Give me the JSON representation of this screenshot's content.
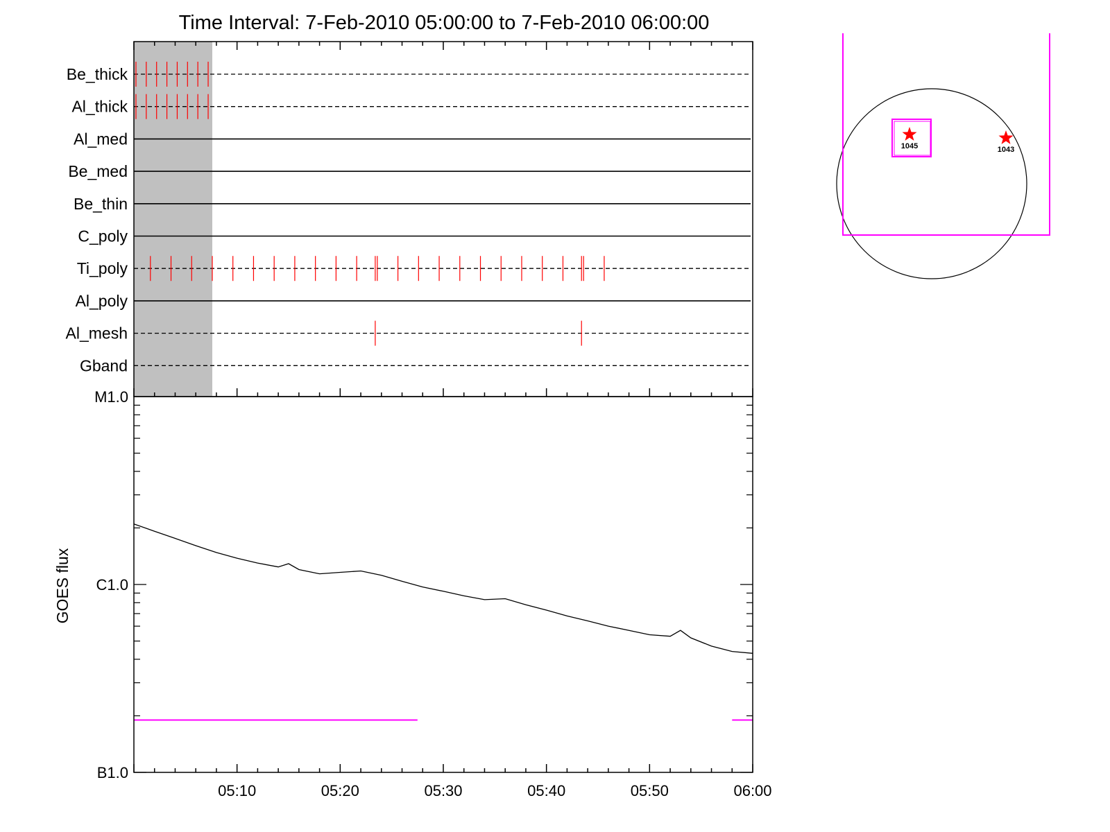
{
  "chart_data": [
    {
      "type": "timeline",
      "title": "Time Interval:  7-Feb-2010 05:00:00 to  7-Feb-2010 06:00:00",
      "x_range": [
        "05:00",
        "06:00"
      ],
      "shaded_interval": [
        "05:00",
        "05:07.6"
      ],
      "rows": [
        {
          "name": "Be_thick",
          "line": "dashed",
          "events": [
            "05:00.2",
            "05:01.2",
            "05:02.2",
            "05:03.2",
            "05:04.2",
            "05:05.2",
            "05:06.2",
            "05:07.2"
          ]
        },
        {
          "name": "Al_thick",
          "line": "dashed",
          "events": [
            "05:00.2",
            "05:01.2",
            "05:02.2",
            "05:03.2",
            "05:04.2",
            "05:05.2",
            "05:06.2",
            "05:07.2"
          ]
        },
        {
          "name": "Al_med",
          "line": "solid",
          "events": []
        },
        {
          "name": "Be_med",
          "line": "solid",
          "events": []
        },
        {
          "name": "Be_thin",
          "line": "solid",
          "events": []
        },
        {
          "name": "C_poly",
          "line": "solid",
          "events": []
        },
        {
          "name": "Ti_poly",
          "line": "dashed",
          "events": [
            "05:01.6",
            "05:03.6",
            "05:05.6",
            "05:07.6",
            "05:09.6",
            "05:11.6",
            "05:13.6",
            "05:15.6",
            "05:17.6",
            "05:19.6",
            "05:21.6",
            "05:23.4",
            "05:23.6",
            "05:25.6",
            "05:27.6",
            "05:29.6",
            "05:31.6",
            "05:33.6",
            "05:35.6",
            "05:37.6",
            "05:39.6",
            "05:41.6",
            "05:43.4",
            "05:43.6",
            "05:45.6"
          ]
        },
        {
          "name": "Al_poly",
          "line": "solid",
          "events": []
        },
        {
          "name": "Al_mesh",
          "line": "dashed",
          "events": [
            "05:23.4",
            "05:43.4"
          ]
        },
        {
          "name": "Gband",
          "line": "dashed",
          "events": []
        }
      ]
    },
    {
      "type": "line",
      "ylabel": "GOES flux",
      "yscale": "log",
      "y_tick_labels": [
        "M1.0",
        "C1.0",
        "B1.0"
      ],
      "ylim": [
        "B1.0",
        "M1.0"
      ],
      "x_tick_labels": [
        "05:10",
        "05:20",
        "05:30",
        "05:40",
        "05:50",
        "06:00"
      ],
      "xlim": [
        "05:00",
        "06:00"
      ],
      "series": [
        {
          "color": "#000000",
          "points": [
            [
              "05:00",
              2.1e-06
            ],
            [
              "05:02",
              1.92e-06
            ],
            [
              "05:04",
              1.76e-06
            ],
            [
              "05:06",
              1.61e-06
            ],
            [
              "05:08",
              1.48e-06
            ],
            [
              "05:10",
              1.38e-06
            ],
            [
              "05:12",
              1.3e-06
            ],
            [
              "05:14",
              1.24e-06
            ],
            [
              "05:15",
              1.29e-06
            ],
            [
              "05:16",
              1.2e-06
            ],
            [
              "05:18",
              1.14e-06
            ],
            [
              "05:20",
              1.16e-06
            ],
            [
              "05:22",
              1.18e-06
            ],
            [
              "05:24",
              1.12e-06
            ],
            [
              "05:26",
              1.04e-06
            ],
            [
              "05:28",
              9.7e-07
            ],
            [
              "05:30",
              9.2e-07
            ],
            [
              "05:32",
              8.7e-07
            ],
            [
              "05:34",
              8.3e-07
            ],
            [
              "05:36",
              8.4e-07
            ],
            [
              "05:38",
              7.8e-07
            ],
            [
              "05:40",
              7.3e-07
            ],
            [
              "05:42",
              6.8e-07
            ],
            [
              "05:44",
              6.4e-07
            ],
            [
              "05:46",
              6e-07
            ],
            [
              "05:48",
              5.7e-07
            ],
            [
              "05:50",
              5.4e-07
            ],
            [
              "05:52",
              5.3e-07
            ],
            [
              "05:53",
              5.7e-07
            ],
            [
              "05:54",
              5.2e-07
            ],
            [
              "05:56",
              4.7e-07
            ],
            [
              "05:58",
              4.4e-07
            ],
            [
              "06:00",
              4.3e-07
            ]
          ]
        },
        {
          "color": "#ff00ff",
          "points": [
            [
              "05:00",
              1.9e-07
            ],
            [
              "05:27.5",
              1.9e-07
            ]
          ]
        },
        {
          "color": "#ff00ff",
          "points": [
            [
              "05:58",
              1.9e-07
            ],
            [
              "06:00",
              1.9e-07
            ]
          ]
        }
      ]
    },
    {
      "type": "map",
      "regions": [
        {
          "label": "1045",
          "marker": "star",
          "color": "#ff0000"
        },
        {
          "label": "1043",
          "marker": "star",
          "color": "#ff0000"
        }
      ],
      "colors": {
        "disk": "#000000",
        "fov": "#ff00ff",
        "marker": "#ff0000"
      }
    }
  ]
}
